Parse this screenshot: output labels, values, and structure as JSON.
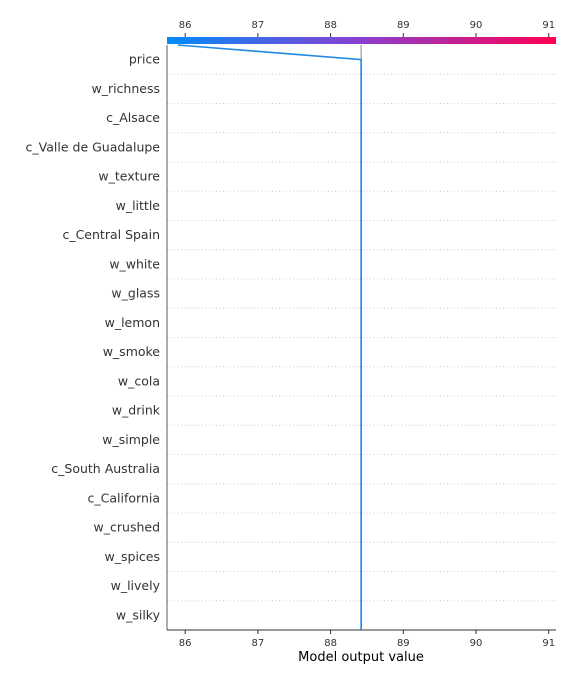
{
  "chart_data": {
    "type": "line",
    "subtype": "shap-decision-plot",
    "xlabel": "Model output value",
    "xlim": [
      85.75,
      91.1
    ],
    "xticks": [
      86,
      87,
      88,
      89,
      90,
      91
    ],
    "base_value": 88.42,
    "features": [
      "price",
      "w_richness",
      "c_Alsace",
      "c_Valle de Guadalupe",
      "w_texture",
      "w_little",
      "c_Central Spain",
      "w_white",
      "w_glass",
      "w_lemon",
      "w_smoke",
      "w_cola",
      "w_drink",
      "w_simple",
      "c_South Australia",
      "c_California",
      "w_crushed",
      "w_spices",
      "w_lively",
      "w_silky"
    ],
    "series": [
      {
        "values_top_to_bottom": [
          85.9,
          88.42,
          88.42,
          88.42,
          88.42,
          88.42,
          88.42,
          88.42,
          88.42,
          88.42,
          88.42,
          88.42,
          88.42,
          88.42,
          88.42,
          88.42,
          88.42,
          88.42,
          88.42,
          88.42,
          88.42
        ],
        "color": "#1e88e5"
      }
    ],
    "colorbar": {
      "from": "#008bfb",
      "mid": "#8a3fd0",
      "to": "#ff0051"
    },
    "grid": "dotted horizontal",
    "legend": "none"
  }
}
